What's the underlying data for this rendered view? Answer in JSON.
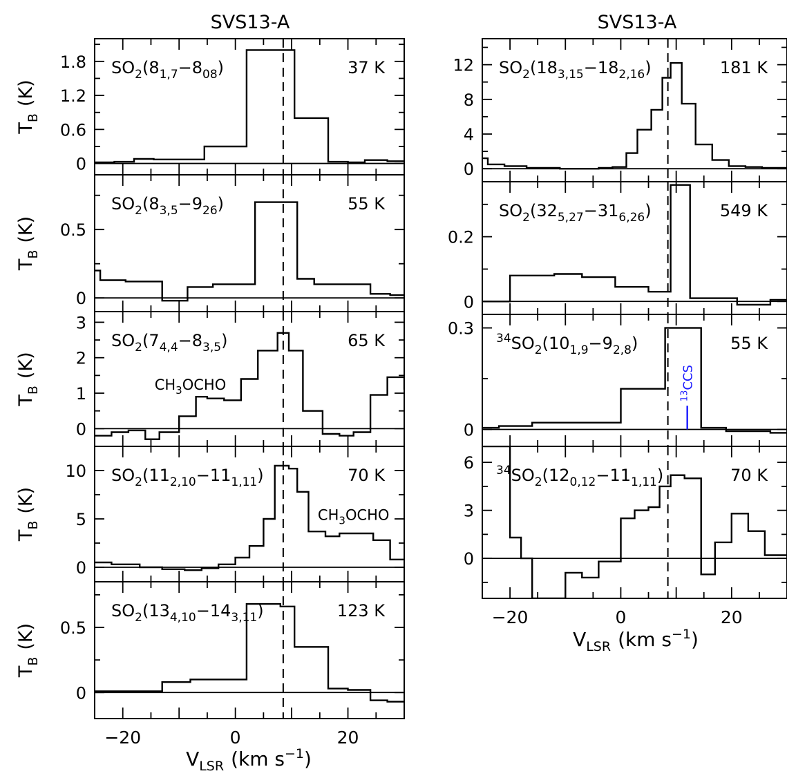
{
  "figure": {
    "columns": [
      {
        "title": "SVS13-A",
        "xlabel": "V",
        "xlabel_sub": "LSR",
        "xlabel_units": "(km s",
        "xlabel_exp": "−1",
        "xlabel_close": ")"
      },
      {
        "title": "SVS13-A",
        "xlabel": "V",
        "xlabel_sub": "LSR",
        "xlabel_units": "(km s",
        "xlabel_exp": "−1",
        "xlabel_close": ")"
      }
    ],
    "ylabel": "T",
    "ylabel_sub": "B",
    "ylabel_units": "(K)",
    "vsys": 8.5
  },
  "chart_data": [
    {
      "type": "line",
      "title": "SO2(8 1,7-8 08)",
      "transition": {
        "mol": "SO",
        "mol_sub": "2",
        "lo": "8",
        "lo_sub": "1,7",
        "dash": "−",
        "hi": "8",
        "hi_sub": "08",
        "close": ")"
      },
      "energy": "37 K",
      "xlim": [
        -25,
        30
      ],
      "ylim": [
        -0.2,
        2.2
      ],
      "yticks": [
        0,
        0.6,
        1.2,
        1.8
      ],
      "ytick_labels": [
        "0",
        "0.6",
        "1.2",
        "1.8"
      ],
      "xtick_labels": [
        "−20",
        "0",
        "20"
      ],
      "x": [
        -25,
        -21.5,
        -18,
        -14.5,
        -10.5,
        -5.5,
        -1.5,
        2,
        6,
        10.5,
        14,
        16.5,
        20,
        23,
        27,
        30
      ],
      "y": [
        0.02,
        0.03,
        0.08,
        0.07,
        0.07,
        0.3,
        0.3,
        2.0,
        2.0,
        0.8,
        0.8,
        0.03,
        0.02,
        0.06,
        0.04,
        0.04
      ],
      "annotations": []
    },
    {
      "type": "line",
      "title": "SO2(8 3,5-9 26)",
      "transition": {
        "mol": "SO",
        "mol_sub": "2",
        "lo": "8",
        "lo_sub": "3,5",
        "dash": "−",
        "hi": "9",
        "hi_sub": "26",
        "close": ")"
      },
      "energy": "55 K",
      "xlim": [
        -25,
        30
      ],
      "ylim": [
        -0.1,
        0.9
      ],
      "yticks": [
        0,
        0.5
      ],
      "ytick_labels": [
        "0",
        "0.5"
      ],
      "xtick_labels": [
        "−20",
        "0",
        "20"
      ],
      "x": [
        -25,
        -24,
        -19.5,
        -13,
        -8.5,
        -4,
        3.5,
        7.5,
        11,
        14,
        18,
        24,
        27.5,
        30
      ],
      "y": [
        0.2,
        0.13,
        0.12,
        -0.02,
        0.08,
        0.1,
        0.7,
        0.7,
        0.14,
        0.1,
        0.1,
        0.03,
        0.02,
        0.02
      ],
      "annotations": []
    },
    {
      "type": "line",
      "title": "SO2(7 4,4-8 3,5)",
      "transition": {
        "mol": "SO",
        "mol_sub": "2",
        "lo": "7",
        "lo_sub": "4,4",
        "dash": "−",
        "hi": "8",
        "hi_sub": "3,5",
        "close": ")"
      },
      "energy": "65 K",
      "xlim": [
        -25,
        30
      ],
      "ylim": [
        -0.5,
        3.3
      ],
      "yticks": [
        0,
        1,
        2,
        3
      ],
      "ytick_labels": [
        "0",
        "1",
        "2",
        "3"
      ],
      "xtick_labels": [
        "−20",
        "0",
        "20"
      ],
      "x": [
        -25,
        -22,
        -19,
        -16,
        -13.5,
        -10,
        -7,
        -5,
        -2,
        1,
        4,
        7.5,
        9.5,
        12,
        15.5,
        18.5,
        21,
        24,
        27,
        30
      ],
      "y": [
        -0.2,
        -0.1,
        -0.05,
        -0.3,
        -0.1,
        0.35,
        0.9,
        0.85,
        0.8,
        1.4,
        2.2,
        2.7,
        2.2,
        0.5,
        -0.15,
        -0.2,
        -0.1,
        0.95,
        1.45,
        1.1
      ],
      "annotations": [
        {
          "text": "CH",
          "sub": "3",
          "rest": "OCHO",
          "x": -8,
          "y": 1.1
        }
      ]
    },
    {
      "type": "line",
      "title": "SO2(11 2,10-11 1,11)",
      "transition": {
        "mol": "SO",
        "mol_sub": "2",
        "lo": "11",
        "lo_sub": "2,10",
        "dash": "−",
        "hi": "11",
        "hi_sub": "1,11",
        "close": ")"
      },
      "energy": "70 K",
      "xlim": [
        -25,
        30
      ],
      "ylim": [
        -1.5,
        12.5
      ],
      "yticks": [
        0,
        5,
        10
      ],
      "ytick_labels": [
        "0",
        "5",
        "10"
      ],
      "xtick_labels": [
        "−20",
        "0",
        "20"
      ],
      "x": [
        -25,
        -22,
        -17,
        -13,
        -9,
        -6,
        -3,
        0,
        2.5,
        5,
        7,
        9.5,
        11,
        13,
        16,
        18.5,
        21.5,
        24.5,
        27.5,
        30
      ],
      "y": [
        0.5,
        0.3,
        0,
        -0.2,
        -0.3,
        -0.1,
        0.3,
        1.0,
        2.2,
        5.0,
        10.5,
        10.2,
        7.8,
        3.7,
        3.2,
        3.5,
        3.5,
        2.8,
        0.8,
        0.8
      ],
      "annotations": [
        {
          "text": "CH",
          "sub": "3",
          "rest": "OCHO",
          "x": 21,
          "y": 4.9
        }
      ]
    },
    {
      "type": "line",
      "title": "SO2(13 4,10-14 3,11)",
      "transition": {
        "mol": "SO",
        "mol_sub": "2",
        "lo": "13",
        "lo_sub": "4,10",
        "dash": "−",
        "hi": "14",
        "hi_sub": "3,11",
        "close": ")"
      },
      "energy": "123 K",
      "xlim": [
        -25,
        30
      ],
      "ylim": [
        -0.2,
        0.85
      ],
      "yticks": [
        0,
        0.5
      ],
      "ytick_labels": [
        "0",
        "0.5"
      ],
      "xtick_labels": [
        "−20",
        "0",
        "20"
      ],
      "x": [
        -25,
        -19,
        -13,
        -8,
        -3,
        2,
        8,
        10.5,
        16.5,
        20,
        24,
        27,
        30
      ],
      "y": [
        0.01,
        0.01,
        0.08,
        0.1,
        0.1,
        0.68,
        0.66,
        0.35,
        0.03,
        0.02,
        -0.06,
        -0.07,
        -0.07
      ],
      "annotations": []
    },
    {
      "type": "line",
      "title": "SO2(18 3,15-18 2,16)",
      "transition": {
        "mol": "SO",
        "mol_sub": "2",
        "lo": "18",
        "lo_sub": "3,15",
        "dash": "−",
        "hi": "18",
        "hi_sub": "2,16",
        "close": ")"
      },
      "energy": "181 K",
      "xlim": [
        -25,
        30
      ],
      "ylim": [
        -1.5,
        15
      ],
      "yticks": [
        0,
        4,
        8,
        12
      ],
      "ytick_labels": [
        "0",
        "4",
        "8",
        "12"
      ],
      "xtick_labels": [
        "−20",
        "0",
        "20"
      ],
      "x": [
        -25,
        -24,
        -21,
        -17,
        -11,
        -4,
        -1.5,
        1,
        3,
        5.5,
        7.5,
        9,
        11,
        13.5,
        16.5,
        19.5,
        22.5,
        25.5,
        28.5,
        30
      ],
      "y": [
        1.2,
        0.5,
        0.3,
        0.1,
        0,
        0.1,
        0.2,
        1.8,
        4.5,
        6.8,
        10.5,
        12.2,
        7.5,
        2.8,
        1.0,
        0.3,
        0.2,
        0.1,
        0.1,
        0.1
      ],
      "annotations": []
    },
    {
      "type": "line",
      "title": "SO2(32 5,27-31 6,26)",
      "transition": {
        "mol": "SO",
        "mol_sub": "2",
        "lo": "32",
        "lo_sub": "5,27",
        "dash": "−",
        "hi": "31",
        "hi_sub": "6,26",
        "close": ")"
      },
      "energy": "549 K",
      "xlim": [
        -25,
        30
      ],
      "ylim": [
        -0.04,
        0.37
      ],
      "yticks": [
        0,
        0.2
      ],
      "ytick_labels": [
        "0",
        "0.2"
      ],
      "xtick_labels": [
        "−20",
        "0",
        "20"
      ],
      "x": [
        -25,
        -24,
        -20,
        -16,
        -12,
        -7,
        -1,
        5,
        9,
        12.5,
        17,
        21,
        25,
        27,
        30
      ],
      "y": [
        0,
        0,
        0.08,
        0.08,
        0.085,
        0.075,
        0.045,
        0.03,
        0.36,
        0.01,
        0.01,
        -0.01,
        -0.01,
        0.005,
        0.005
      ],
      "annotations": []
    },
    {
      "type": "line",
      "title": "34SO2(10 1,9-9 2,8)",
      "transition": {
        "mol": "SO",
        "mol_pre": "34",
        "mol_sub": "2",
        "lo": "10",
        "lo_sub": "1,9",
        "dash": "−",
        "hi": "9",
        "hi_sub": "2,8",
        "close": ")"
      },
      "energy": "55 K",
      "xlim": [
        -25,
        30
      ],
      "ylim": [
        -0.05,
        0.34
      ],
      "yticks": [
        0,
        0.3
      ],
      "ytick_labels": [
        "0",
        "0.3"
      ],
      "xtick_labels": [
        "−20",
        "0",
        "20"
      ],
      "x": [
        -25,
        -22,
        -16,
        -10,
        -3,
        0,
        4,
        8,
        12,
        14.5,
        17,
        19,
        22,
        25,
        27,
        30
      ],
      "y": [
        0.005,
        0.01,
        0.02,
        0.02,
        0.02,
        0.12,
        0.12,
        0.3,
        0.3,
        0.005,
        0.005,
        -0.005,
        -0.005,
        -0.005,
        -0.01,
        -0.01
      ],
      "annotations": [
        {
          "text": "13",
          "sup": true,
          "rest": "CCS",
          "x": 12,
          "y": 0.07,
          "color": "#1a1aff",
          "rotated": true
        }
      ]
    },
    {
      "type": "line",
      "title": "34SO2(12 0,12-11 1,11)",
      "transition": {
        "mol": "SO",
        "mol_pre": "34",
        "mol_sub": "2",
        "lo": "12",
        "lo_sub": "0,12",
        "dash": "−",
        "hi": "11",
        "hi_sub": "1,11",
        "close": ")"
      },
      "energy": "70 K",
      "xlim": [
        -25,
        30
      ],
      "ylim": [
        -2.5,
        7
      ],
      "yticks": [
        0,
        3,
        6
      ],
      "ytick_labels": [
        "0",
        "3",
        "6"
      ],
      "xtick_labels": [
        "−20",
        "0",
        "20"
      ],
      "x": [
        -25,
        -22,
        -20,
        -18,
        -16,
        -13,
        -10,
        -7,
        -4,
        -2.5,
        0,
        2.5,
        5,
        7,
        9,
        11.5,
        14.5,
        17,
        20,
        23,
        26,
        28.5,
        30
      ],
      "y": [
        7.5,
        7,
        1.3,
        0,
        -4,
        -6,
        -0.9,
        -1.2,
        -0.2,
        -0.2,
        2.5,
        3.0,
        3.2,
        4.5,
        5.2,
        5.0,
        -1.0,
        1.0,
        2.8,
        1.7,
        0.2,
        0.2,
        0.2
      ],
      "annotations": []
    }
  ]
}
